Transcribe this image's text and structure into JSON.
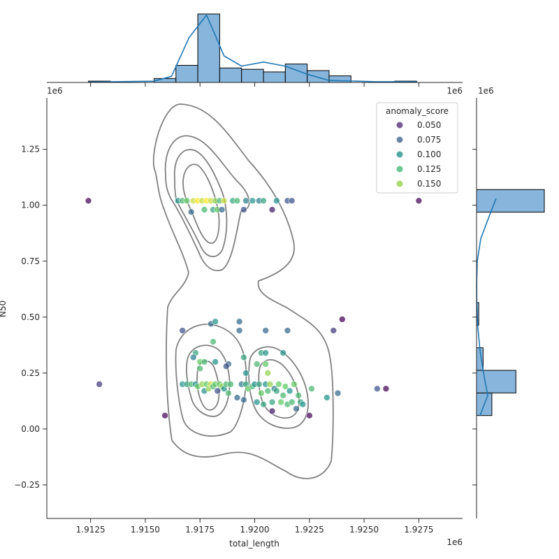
{
  "chart_data": {
    "type": "scatter",
    "subtype": "jointplot",
    "xlabel": "total_length",
    "ylabel": "N50",
    "x_offset_label": "1e6",
    "y_offset_label": "1e6",
    "marginal_x_offset_label": "1e6",
    "marginal_y_offset_label": "1e6",
    "xlim": [
      1.9105,
      1.9295
    ],
    "ylim": [
      -0.4,
      1.48
    ],
    "x_ticks": [
      1.9125,
      1.915,
      1.9175,
      1.92,
      1.9225,
      1.925,
      1.9275
    ],
    "x_tick_labels": [
      "1.9125",
      "1.9150",
      "1.9175",
      "1.9200",
      "1.9225",
      "1.9250",
      "1.9275"
    ],
    "y_ticks": [
      -0.25,
      0.0,
      0.25,
      0.5,
      0.75,
      1.0,
      1.25
    ],
    "y_tick_labels": [
      "−0.25",
      "0.00",
      "0.25",
      "0.50",
      "0.75",
      "1.00",
      "1.25"
    ],
    "hue": "anomaly_score",
    "legend": {
      "title": "anomaly_score",
      "placement": "top-right",
      "entries": [
        {
          "label": "0.050",
          "color": "#7a5a97"
        },
        {
          "label": "0.075",
          "color": "#6a86a6"
        },
        {
          "label": "0.100",
          "color": "#50a8a3"
        },
        {
          "label": "0.125",
          "color": "#6cc894"
        },
        {
          "label": "0.150",
          "color": "#aadc6a"
        }
      ]
    },
    "points": [
      {
        "x": 1.9124,
        "y": 1.02,
        "s": 0.04
      },
      {
        "x": 1.9129,
        "y": 0.2,
        "s": 0.06
      },
      {
        "x": 1.9159,
        "y": 0.06,
        "s": 0.04
      },
      {
        "x": 1.9165,
        "y": 1.02,
        "s": 0.1
      },
      {
        "x": 1.9167,
        "y": 1.02,
        "s": 0.12
      },
      {
        "x": 1.9169,
        "y": 1.02,
        "s": 0.13
      },
      {
        "x": 1.9171,
        "y": 0.97,
        "s": 0.08
      },
      {
        "x": 1.9172,
        "y": 1.02,
        "s": 0.15
      },
      {
        "x": 1.9174,
        "y": 1.02,
        "s": 0.16
      },
      {
        "x": 1.9176,
        "y": 1.02,
        "s": 0.15
      },
      {
        "x": 1.9177,
        "y": 0.98,
        "s": 0.12
      },
      {
        "x": 1.9178,
        "y": 1.02,
        "s": 0.16
      },
      {
        "x": 1.918,
        "y": 1.02,
        "s": 0.15
      },
      {
        "x": 1.9181,
        "y": 0.98,
        "s": 0.11
      },
      {
        "x": 1.9182,
        "y": 1.02,
        "s": 0.14
      },
      {
        "x": 1.9183,
        "y": 0.98,
        "s": 0.13
      },
      {
        "x": 1.9184,
        "y": 1.02,
        "s": 0.12
      },
      {
        "x": 1.9185,
        "y": 0.98,
        "s": 0.08
      },
      {
        "x": 1.9186,
        "y": 1.02,
        "s": 0.15
      },
      {
        "x": 1.919,
        "y": 1.02,
        "s": 0.11
      },
      {
        "x": 1.9192,
        "y": 1.02,
        "s": 0.12
      },
      {
        "x": 1.9195,
        "y": 0.98,
        "s": 0.07
      },
      {
        "x": 1.9196,
        "y": 1.02,
        "s": 0.09
      },
      {
        "x": 1.9199,
        "y": 1.02,
        "s": 0.1
      },
      {
        "x": 1.9202,
        "y": 1.02,
        "s": 0.09
      },
      {
        "x": 1.9204,
        "y": 1.02,
        "s": 0.11
      },
      {
        "x": 1.9208,
        "y": 0.98,
        "s": 0.05
      },
      {
        "x": 1.921,
        "y": 1.02,
        "s": 0.1
      },
      {
        "x": 1.9215,
        "y": 1.02,
        "s": 0.07
      },
      {
        "x": 1.9217,
        "y": 1.02,
        "s": 0.07
      },
      {
        "x": 1.9275,
        "y": 1.02,
        "s": 0.04
      },
      {
        "x": 1.9167,
        "y": 0.44,
        "s": 0.07
      },
      {
        "x": 1.918,
        "y": 0.47,
        "s": 0.08
      },
      {
        "x": 1.9182,
        "y": 0.48,
        "s": 0.1
      },
      {
        "x": 1.9193,
        "y": 0.48,
        "s": 0.08
      },
      {
        "x": 1.9193,
        "y": 0.44,
        "s": 0.08
      },
      {
        "x": 1.9205,
        "y": 0.44,
        "s": 0.08
      },
      {
        "x": 1.9215,
        "y": 0.44,
        "s": 0.08
      },
      {
        "x": 1.9236,
        "y": 0.44,
        "s": 0.06
      },
      {
        "x": 1.924,
        "y": 0.49,
        "s": 0.04
      },
      {
        "x": 1.9181,
        "y": 0.39,
        "s": 0.12
      },
      {
        "x": 1.9173,
        "y": 0.34,
        "s": 0.11
      },
      {
        "x": 1.9195,
        "y": 0.32,
        "s": 0.11
      },
      {
        "x": 1.9172,
        "y": 0.32,
        "s": 0.09
      },
      {
        "x": 1.9175,
        "y": 0.3,
        "s": 0.13
      },
      {
        "x": 1.9177,
        "y": 0.3,
        "s": 0.12
      },
      {
        "x": 1.9182,
        "y": 0.3,
        "s": 0.1
      },
      {
        "x": 1.9188,
        "y": 0.29,
        "s": 0.08
      },
      {
        "x": 1.9187,
        "y": 0.28,
        "s": 0.07
      },
      {
        "x": 1.9201,
        "y": 0.29,
        "s": 0.12
      },
      {
        "x": 1.9203,
        "y": 0.34,
        "s": 0.11
      },
      {
        "x": 1.9205,
        "y": 0.34,
        "s": 0.1
      },
      {
        "x": 1.9205,
        "y": 0.29,
        "s": 0.13
      },
      {
        "x": 1.9213,
        "y": 0.34,
        "s": 0.1
      },
      {
        "x": 1.9175,
        "y": 0.27,
        "s": 0.12
      },
      {
        "x": 1.9196,
        "y": 0.25,
        "s": 0.1
      },
      {
        "x": 1.9206,
        "y": 0.25,
        "s": 0.14
      },
      {
        "x": 1.9167,
        "y": 0.2,
        "s": 0.1
      },
      {
        "x": 1.9169,
        "y": 0.2,
        "s": 0.11
      },
      {
        "x": 1.9171,
        "y": 0.2,
        "s": 0.12
      },
      {
        "x": 1.9173,
        "y": 0.2,
        "s": 0.1
      },
      {
        "x": 1.9174,
        "y": 0.19,
        "s": 0.13
      },
      {
        "x": 1.9176,
        "y": 0.2,
        "s": 0.14
      },
      {
        "x": 1.9177,
        "y": 0.17,
        "s": 0.1
      },
      {
        "x": 1.9178,
        "y": 0.2,
        "s": 0.13
      },
      {
        "x": 1.9179,
        "y": 0.18,
        "s": 0.14
      },
      {
        "x": 1.918,
        "y": 0.2,
        "s": 0.15
      },
      {
        "x": 1.9181,
        "y": 0.19,
        "s": 0.12
      },
      {
        "x": 1.9182,
        "y": 0.2,
        "s": 0.13
      },
      {
        "x": 1.9183,
        "y": 0.17,
        "s": 0.07
      },
      {
        "x": 1.9184,
        "y": 0.2,
        "s": 0.13
      },
      {
        "x": 1.9185,
        "y": 0.19,
        "s": 0.14
      },
      {
        "x": 1.9186,
        "y": 0.18,
        "s": 0.1
      },
      {
        "x": 1.9187,
        "y": 0.2,
        "s": 0.12
      },
      {
        "x": 1.9188,
        "y": 0.16,
        "s": 0.12
      },
      {
        "x": 1.9189,
        "y": 0.2,
        "s": 0.12
      },
      {
        "x": 1.9192,
        "y": 0.14,
        "s": 0.08
      },
      {
        "x": 1.9194,
        "y": 0.2,
        "s": 0.09
      },
      {
        "x": 1.9195,
        "y": 0.13,
        "s": 0.08
      },
      {
        "x": 1.9196,
        "y": 0.2,
        "s": 0.11
      },
      {
        "x": 1.9197,
        "y": 0.18,
        "s": 0.13
      },
      {
        "x": 1.9199,
        "y": 0.19,
        "s": 0.12
      },
      {
        "x": 1.92,
        "y": 0.2,
        "s": 0.1
      },
      {
        "x": 1.9201,
        "y": 0.12,
        "s": 0.1
      },
      {
        "x": 1.9202,
        "y": 0.2,
        "s": 0.11
      },
      {
        "x": 1.9203,
        "y": 0.16,
        "s": 0.13
      },
      {
        "x": 1.9204,
        "y": 0.11,
        "s": 0.11
      },
      {
        "x": 1.9205,
        "y": 0.2,
        "s": 0.1
      },
      {
        "x": 1.9206,
        "y": 0.17,
        "s": 0.12
      },
      {
        "x": 1.9207,
        "y": 0.2,
        "s": 0.14
      },
      {
        "x": 1.9208,
        "y": 0.12,
        "s": 0.11
      },
      {
        "x": 1.9209,
        "y": 0.18,
        "s": 0.09
      },
      {
        "x": 1.921,
        "y": 0.17,
        "s": 0.11
      },
      {
        "x": 1.9211,
        "y": 0.2,
        "s": 0.13
      },
      {
        "x": 1.9212,
        "y": 0.12,
        "s": 0.13
      },
      {
        "x": 1.9213,
        "y": 0.15,
        "s": 0.12
      },
      {
        "x": 1.9214,
        "y": 0.19,
        "s": 0.13
      },
      {
        "x": 1.9215,
        "y": 0.11,
        "s": 0.12
      },
      {
        "x": 1.9216,
        "y": 0.17,
        "s": 0.1
      },
      {
        "x": 1.9217,
        "y": 0.12,
        "s": 0.12
      },
      {
        "x": 1.9218,
        "y": 0.2,
        "s": 0.13
      },
      {
        "x": 1.9219,
        "y": 0.09,
        "s": 0.08
      },
      {
        "x": 1.922,
        "y": 0.15,
        "s": 0.12
      },
      {
        "x": 1.9221,
        "y": 0.12,
        "s": 0.11
      },
      {
        "x": 1.9222,
        "y": 0.11,
        "s": 0.1
      },
      {
        "x": 1.9226,
        "y": 0.18,
        "s": 0.12
      },
      {
        "x": 1.9233,
        "y": 0.14,
        "s": 0.1
      },
      {
        "x": 1.9238,
        "y": 0.16,
        "s": 0.08
      },
      {
        "x": 1.9208,
        "y": 0.08,
        "s": 0.05
      },
      {
        "x": 1.9225,
        "y": 0.06,
        "s": 0.04
      },
      {
        "x": 1.9256,
        "y": 0.18,
        "s": 0.07
      },
      {
        "x": 1.926,
        "y": 0.18,
        "s": 0.04
      }
    ],
    "marginal_x": {
      "type": "histogram",
      "bin_edges": [
        1.9124,
        1.9134,
        1.9144,
        1.9154,
        1.9164,
        1.9174,
        1.9184,
        1.9194,
        1.9204,
        1.9214,
        1.9224,
        1.9234,
        1.9244,
        1.9254,
        1.9264,
        1.9274
      ],
      "counts": [
        1,
        0,
        0,
        3,
        13,
        52,
        11,
        10,
        8,
        14,
        9,
        5,
        0,
        0,
        1
      ],
      "kde_x": [
        1.9124,
        1.9154,
        1.9162,
        1.917,
        1.9178,
        1.9186,
        1.9194,
        1.9204,
        1.9214,
        1.9224,
        1.9234,
        1.9254,
        1.9274
      ],
      "kde_y": [
        0.2,
        0.6,
        3,
        22,
        33,
        13,
        8,
        10,
        8,
        4,
        1,
        0.4,
        0.3
      ]
    },
    "marginal_y": {
      "type": "histogram",
      "bin_edges": [
        0.06,
        0.161,
        0.262,
        0.363,
        0.464,
        0.565,
        0.666,
        0.767,
        0.868,
        0.969,
        1.07
      ],
      "counts": [
        7,
        18,
        3,
        0,
        1,
        0,
        0,
        0,
        0,
        31
      ],
      "kde_y": [
        0.06,
        0.15,
        0.25,
        0.35,
        0.45,
        0.55,
        0.65,
        0.75,
        0.85,
        0.95,
        1.03
      ],
      "kde_x": [
        5,
        16,
        10,
        5,
        2,
        0.3,
        0.2,
        1,
        6,
        18,
        28
      ]
    },
    "contour_color": "#808080",
    "point_palette": "viridis"
  }
}
